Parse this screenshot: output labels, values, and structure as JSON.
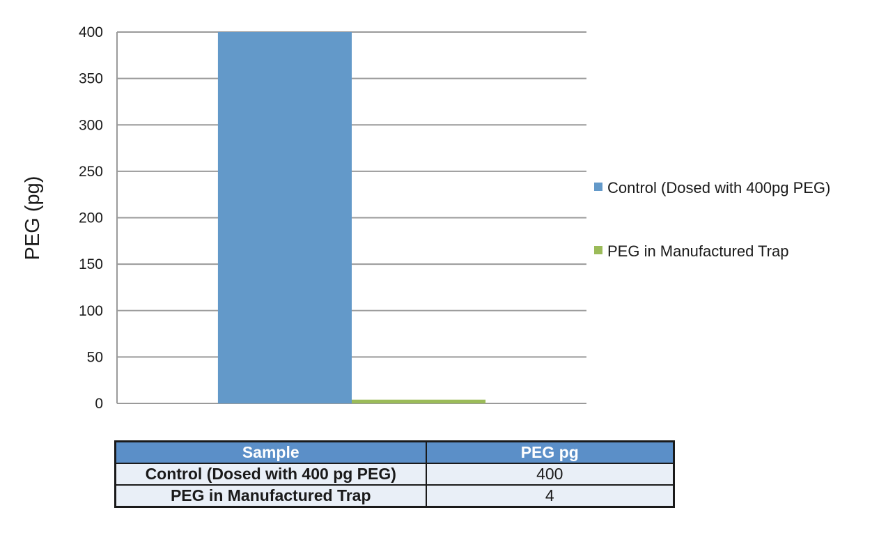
{
  "chart_data": {
    "type": "bar",
    "categories": [
      ""
    ],
    "series": [
      {
        "name": "Control (Dosed with 400pg PEG)",
        "values": [
          400
        ],
        "color": "#6399c9"
      },
      {
        "name": "PEG in Manufactured Trap",
        "values": [
          4
        ],
        "color": "#9bbb59"
      }
    ],
    "title": "",
    "xlabel": "",
    "ylabel": "PEG (pg)",
    "ylim": [
      0,
      400
    ],
    "yticks": [
      0,
      50,
      100,
      150,
      200,
      250,
      300,
      350,
      400
    ],
    "grid": true,
    "legend_position": "right"
  },
  "table": {
    "headers": [
      "Sample",
      "PEG pg"
    ],
    "rows": [
      [
        "Control (Dosed with 400 pg PEG)",
        "400"
      ],
      [
        "PEG in Manufactured Trap",
        "4"
      ]
    ]
  },
  "colors": {
    "gridline": "#9a9a9a",
    "table_header_bg": "#5b8fc8",
    "table_cell_bg": "#e9eff7"
  }
}
